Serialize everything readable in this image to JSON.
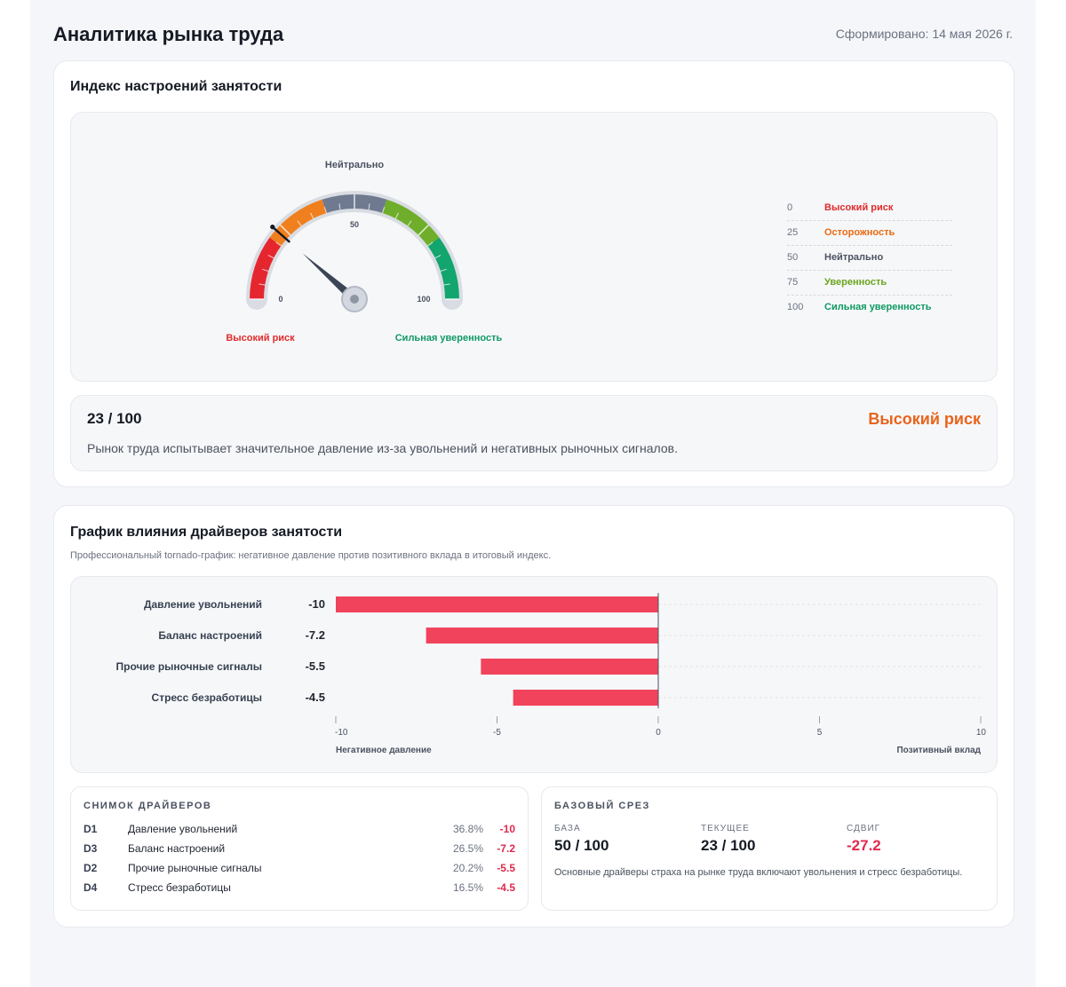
{
  "header": {
    "title": "Аналитика рынка труда",
    "generated": "Сформировано: 14 мая 2026 г."
  },
  "gauge_card": {
    "title": "Индекс настроений занятости",
    "gauge": {
      "value": 23,
      "min": 0,
      "max": 100,
      "top_label": "Нейтрально",
      "min_label": "0",
      "mid_label": "50",
      "max_label": "100",
      "left_caption": "Высокий риск",
      "right_caption": "Сильная уверенность",
      "segment_colors": [
        "#e6262e",
        "#f07f1e",
        "#6f7a90",
        "#6fae2a",
        "#12a56d"
      ]
    },
    "legend": [
      {
        "value": "0",
        "label": "Высокий риск",
        "color": "#e02b2b"
      },
      {
        "value": "25",
        "label": "Осторожность",
        "color": "#ea6a12"
      },
      {
        "value": "50",
        "label": "Нейтрально",
        "color": "#4b5260"
      },
      {
        "value": "75",
        "label": "Уверенность",
        "color": "#6aa51d"
      },
      {
        "value": "100",
        "label": "Сильная уверенность",
        "color": "#0f9a64"
      }
    ],
    "score": {
      "value": "23 / 100",
      "status": "Высокий риск",
      "description": "Рынок труда испытывает значительное давление из-за увольнений и негативных рыночных сигналов."
    }
  },
  "drivers_card": {
    "title": "График влияния драйверов занятости",
    "subtitle": "Профессиональный tornado-график: негативное давление против позитивного вклада в итоговый индекс.",
    "snapshot": {
      "title": "СНИМОК ДРАЙВЕРОВ",
      "rows": [
        {
          "id": "D1",
          "name": "Давление увольнений",
          "pct": "36.8%",
          "value": "-10"
        },
        {
          "id": "D3",
          "name": "Баланс настроений",
          "pct": "26.5%",
          "value": "-7.2"
        },
        {
          "id": "D2",
          "name": "Прочие рыночные сигналы",
          "pct": "20.2%",
          "value": "-5.5"
        },
        {
          "id": "D4",
          "name": "Стресс безработицы",
          "pct": "16.5%",
          "value": "-4.5"
        }
      ]
    },
    "baseline": {
      "title": "БАЗОВЫЙ СРЕЗ",
      "base_label": "БАЗА",
      "base_value": "50 / 100",
      "current_label": "ТЕКУЩЕЕ",
      "current_value": "23 / 100",
      "shift_label": "СДВИГ",
      "shift_value": "-27.2",
      "description": "Основные драйверы страха на рынке труда включают увольнения и стресс безработицы."
    }
  },
  "chart_data": {
    "type": "bar",
    "orientation": "horizontal",
    "categories": [
      "Давление увольнений",
      "Баланс настроений",
      "Прочие рыночные сигналы",
      "Стресс безработицы"
    ],
    "values": [
      -10,
      -7.2,
      -5.5,
      -4.5
    ],
    "value_labels": [
      "-10",
      "-7.2",
      "-5.5",
      "-4.5"
    ],
    "xlim": [
      -10,
      10
    ],
    "ticks": [
      -10,
      -5,
      0,
      5,
      10
    ],
    "tick_labels": [
      "-10",
      "-5",
      "0",
      "5",
      "10"
    ],
    "axis_left_label": "Негативное давление",
    "axis_right_label": "Позитивный вклад",
    "bar_color": "#f2435c",
    "grid": true
  }
}
